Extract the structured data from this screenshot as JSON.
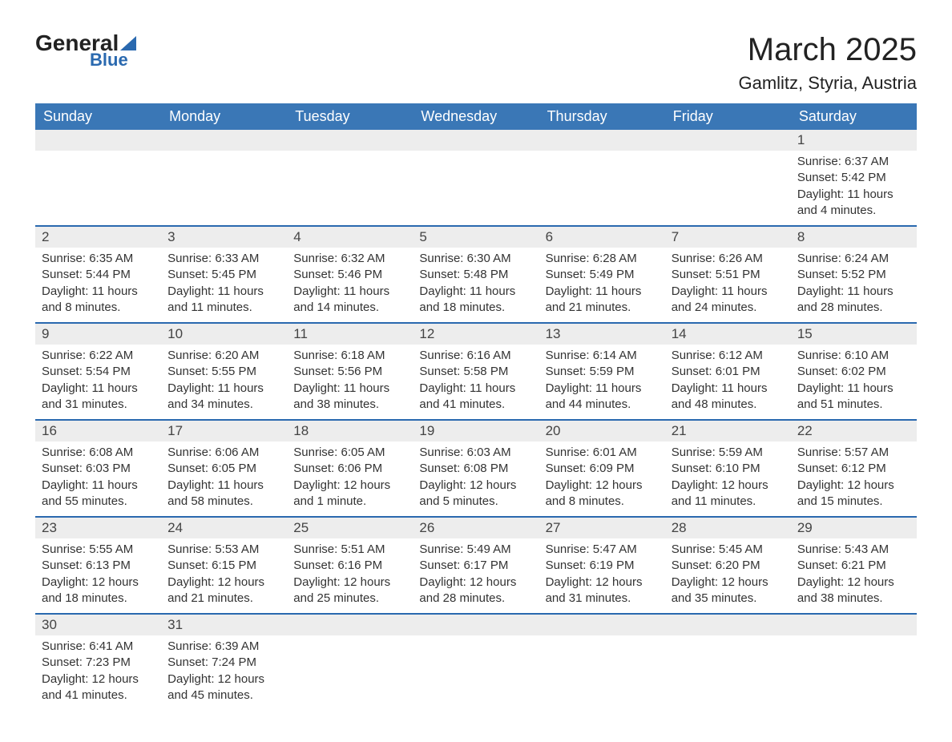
{
  "brand": {
    "part1": "General",
    "part2": "Blue"
  },
  "title": "March 2025",
  "location": "Gamlitz, Styria, Austria",
  "colors": {
    "header_bg": "#3a77b6",
    "header_text": "#ffffff",
    "daynum_bg": "#ededed",
    "border": "#2a69af",
    "text": "#333333"
  },
  "weekdays": [
    "Sunday",
    "Monday",
    "Tuesday",
    "Wednesday",
    "Thursday",
    "Friday",
    "Saturday"
  ],
  "weeks": [
    [
      null,
      null,
      null,
      null,
      null,
      null,
      {
        "n": "1",
        "sr": "Sunrise: 6:37 AM",
        "ss": "Sunset: 5:42 PM",
        "dl": "Daylight: 11 hours and 4 minutes."
      }
    ],
    [
      {
        "n": "2",
        "sr": "Sunrise: 6:35 AM",
        "ss": "Sunset: 5:44 PM",
        "dl": "Daylight: 11 hours and 8 minutes."
      },
      {
        "n": "3",
        "sr": "Sunrise: 6:33 AM",
        "ss": "Sunset: 5:45 PM",
        "dl": "Daylight: 11 hours and 11 minutes."
      },
      {
        "n": "4",
        "sr": "Sunrise: 6:32 AM",
        "ss": "Sunset: 5:46 PM",
        "dl": "Daylight: 11 hours and 14 minutes."
      },
      {
        "n": "5",
        "sr": "Sunrise: 6:30 AM",
        "ss": "Sunset: 5:48 PM",
        "dl": "Daylight: 11 hours and 18 minutes."
      },
      {
        "n": "6",
        "sr": "Sunrise: 6:28 AM",
        "ss": "Sunset: 5:49 PM",
        "dl": "Daylight: 11 hours and 21 minutes."
      },
      {
        "n": "7",
        "sr": "Sunrise: 6:26 AM",
        "ss": "Sunset: 5:51 PM",
        "dl": "Daylight: 11 hours and 24 minutes."
      },
      {
        "n": "8",
        "sr": "Sunrise: 6:24 AM",
        "ss": "Sunset: 5:52 PM",
        "dl": "Daylight: 11 hours and 28 minutes."
      }
    ],
    [
      {
        "n": "9",
        "sr": "Sunrise: 6:22 AM",
        "ss": "Sunset: 5:54 PM",
        "dl": "Daylight: 11 hours and 31 minutes."
      },
      {
        "n": "10",
        "sr": "Sunrise: 6:20 AM",
        "ss": "Sunset: 5:55 PM",
        "dl": "Daylight: 11 hours and 34 minutes."
      },
      {
        "n": "11",
        "sr": "Sunrise: 6:18 AM",
        "ss": "Sunset: 5:56 PM",
        "dl": "Daylight: 11 hours and 38 minutes."
      },
      {
        "n": "12",
        "sr": "Sunrise: 6:16 AM",
        "ss": "Sunset: 5:58 PM",
        "dl": "Daylight: 11 hours and 41 minutes."
      },
      {
        "n": "13",
        "sr": "Sunrise: 6:14 AM",
        "ss": "Sunset: 5:59 PM",
        "dl": "Daylight: 11 hours and 44 minutes."
      },
      {
        "n": "14",
        "sr": "Sunrise: 6:12 AM",
        "ss": "Sunset: 6:01 PM",
        "dl": "Daylight: 11 hours and 48 minutes."
      },
      {
        "n": "15",
        "sr": "Sunrise: 6:10 AM",
        "ss": "Sunset: 6:02 PM",
        "dl": "Daylight: 11 hours and 51 minutes."
      }
    ],
    [
      {
        "n": "16",
        "sr": "Sunrise: 6:08 AM",
        "ss": "Sunset: 6:03 PM",
        "dl": "Daylight: 11 hours and 55 minutes."
      },
      {
        "n": "17",
        "sr": "Sunrise: 6:06 AM",
        "ss": "Sunset: 6:05 PM",
        "dl": "Daylight: 11 hours and 58 minutes."
      },
      {
        "n": "18",
        "sr": "Sunrise: 6:05 AM",
        "ss": "Sunset: 6:06 PM",
        "dl": "Daylight: 12 hours and 1 minute."
      },
      {
        "n": "19",
        "sr": "Sunrise: 6:03 AM",
        "ss": "Sunset: 6:08 PM",
        "dl": "Daylight: 12 hours and 5 minutes."
      },
      {
        "n": "20",
        "sr": "Sunrise: 6:01 AM",
        "ss": "Sunset: 6:09 PM",
        "dl": "Daylight: 12 hours and 8 minutes."
      },
      {
        "n": "21",
        "sr": "Sunrise: 5:59 AM",
        "ss": "Sunset: 6:10 PM",
        "dl": "Daylight: 12 hours and 11 minutes."
      },
      {
        "n": "22",
        "sr": "Sunrise: 5:57 AM",
        "ss": "Sunset: 6:12 PM",
        "dl": "Daylight: 12 hours and 15 minutes."
      }
    ],
    [
      {
        "n": "23",
        "sr": "Sunrise: 5:55 AM",
        "ss": "Sunset: 6:13 PM",
        "dl": "Daylight: 12 hours and 18 minutes."
      },
      {
        "n": "24",
        "sr": "Sunrise: 5:53 AM",
        "ss": "Sunset: 6:15 PM",
        "dl": "Daylight: 12 hours and 21 minutes."
      },
      {
        "n": "25",
        "sr": "Sunrise: 5:51 AM",
        "ss": "Sunset: 6:16 PM",
        "dl": "Daylight: 12 hours and 25 minutes."
      },
      {
        "n": "26",
        "sr": "Sunrise: 5:49 AM",
        "ss": "Sunset: 6:17 PM",
        "dl": "Daylight: 12 hours and 28 minutes."
      },
      {
        "n": "27",
        "sr": "Sunrise: 5:47 AM",
        "ss": "Sunset: 6:19 PM",
        "dl": "Daylight: 12 hours and 31 minutes."
      },
      {
        "n": "28",
        "sr": "Sunrise: 5:45 AM",
        "ss": "Sunset: 6:20 PM",
        "dl": "Daylight: 12 hours and 35 minutes."
      },
      {
        "n": "29",
        "sr": "Sunrise: 5:43 AM",
        "ss": "Sunset: 6:21 PM",
        "dl": "Daylight: 12 hours and 38 minutes."
      }
    ],
    [
      {
        "n": "30",
        "sr": "Sunrise: 6:41 AM",
        "ss": "Sunset: 7:23 PM",
        "dl": "Daylight: 12 hours and 41 minutes."
      },
      {
        "n": "31",
        "sr": "Sunrise: 6:39 AM",
        "ss": "Sunset: 7:24 PM",
        "dl": "Daylight: 12 hours and 45 minutes."
      },
      null,
      null,
      null,
      null,
      null
    ]
  ]
}
